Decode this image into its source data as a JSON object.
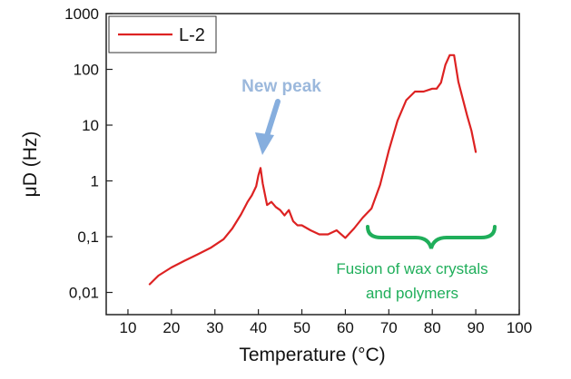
{
  "colors": {
    "series": "#dd2222",
    "arrow": "#86aede",
    "brace": "#1fae5a",
    "frame": "#222222"
  },
  "chart_data": {
    "type": "line",
    "title": "",
    "xlabel": "Temperature (°C)",
    "ylabel": "μD (Hz)",
    "xlim": [
      5,
      100
    ],
    "ylim": [
      0.004,
      1000
    ],
    "yscale": "log",
    "grid": false,
    "legend_position": "top-left",
    "x_ticks": [
      10,
      20,
      30,
      40,
      50,
      60,
      70,
      80,
      90,
      100
    ],
    "x_tick_labels": [
      "10",
      "20",
      "30",
      "40",
      "50",
      "60",
      "70",
      "80",
      "90",
      "100"
    ],
    "y_ticks": [
      0.01,
      0.1,
      1,
      10,
      100,
      1000
    ],
    "y_tick_labels": [
      "0,01",
      "0,1",
      "1",
      "10",
      "100",
      "1000"
    ],
    "series": [
      {
        "name": "L-2",
        "x": [
          15,
          17,
          20,
          23,
          26,
          29,
          32,
          34,
          36,
          37.5,
          38.5,
          39.5,
          40,
          40.5,
          41,
          42,
          43,
          44,
          45,
          46,
          47,
          48,
          49,
          50,
          52,
          54,
          56,
          58,
          60,
          62,
          64,
          66,
          68,
          70,
          72,
          74,
          76,
          78,
          80,
          81,
          82,
          83,
          84,
          85,
          86,
          87,
          88,
          89,
          90
        ],
        "y": [
          0.014,
          0.02,
          0.028,
          0.037,
          0.048,
          0.063,
          0.09,
          0.14,
          0.25,
          0.42,
          0.55,
          0.8,
          1.25,
          1.7,
          0.9,
          0.37,
          0.42,
          0.34,
          0.3,
          0.24,
          0.3,
          0.19,
          0.16,
          0.16,
          0.13,
          0.11,
          0.11,
          0.13,
          0.095,
          0.14,
          0.22,
          0.32,
          0.85,
          3.5,
          12,
          28,
          40,
          40,
          45,
          45,
          58,
          120,
          180,
          180,
          60,
          30,
          15,
          8,
          3.3
        ]
      }
    ],
    "annotations": [
      {
        "text": "New peak",
        "x": 40.5,
        "y": 1.7
      },
      {
        "text": "Fusion of wax crystals",
        "text2": "and polymers",
        "x_range": [
          66,
          95
        ]
      }
    ]
  }
}
